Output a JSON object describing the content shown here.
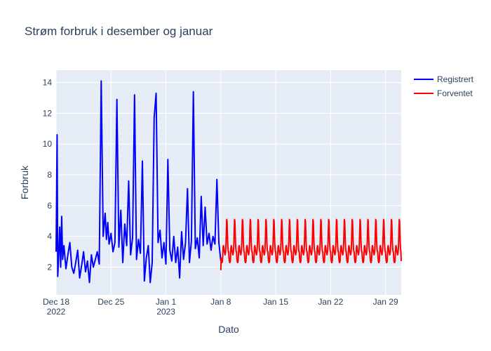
{
  "chart_data": {
    "type": "line",
    "title": "Strøm forbruk i desember og januar",
    "xlabel": "Dato",
    "ylabel": "Forbruk",
    "xlim": [
      "2022-12-18",
      "2023-01-31"
    ],
    "ylim": [
      0.2,
      14.8
    ],
    "x_ticks": [
      {
        "date": "2022-12-18",
        "label": "Dec 18",
        "sublabel": "2022"
      },
      {
        "date": "2022-12-25",
        "label": "Dec 25",
        "sublabel": ""
      },
      {
        "date": "2023-01-01",
        "label": "Jan 1",
        "sublabel": "2023"
      },
      {
        "date": "2023-01-08",
        "label": "Jan 8",
        "sublabel": ""
      },
      {
        "date": "2023-01-15",
        "label": "Jan 15",
        "sublabel": ""
      },
      {
        "date": "2023-01-22",
        "label": "Jan 22",
        "sublabel": ""
      },
      {
        "date": "2023-01-29",
        "label": "Jan 29",
        "sublabel": ""
      }
    ],
    "y_ticks": [
      2,
      4,
      6,
      8,
      10,
      12,
      14
    ],
    "grid": true,
    "legend_position": "top-right",
    "series": [
      {
        "name": "Registrert",
        "color": "#0000ff",
        "x": [
          "2022-12-18 00:00",
          "2022-12-18 03:00",
          "2022-12-18 05:00",
          "2022-12-18 08:00",
          "2022-12-18 11:00",
          "2022-12-18 14:00",
          "2022-12-18 17:00",
          "2022-12-18 20:00",
          "2022-12-19 00:00",
          "2022-12-19 06:00",
          "2022-12-19 12:00",
          "2022-12-19 18:00",
          "2022-12-20 00:00",
          "2022-12-20 06:00",
          "2022-12-20 12:00",
          "2022-12-20 18:00",
          "2022-12-21 00:00",
          "2022-12-21 06:00",
          "2022-12-21 12:00",
          "2022-12-21 18:00",
          "2022-12-22 00:00",
          "2022-12-22 06:00",
          "2022-12-22 12:00",
          "2022-12-22 18:00",
          "2022-12-23 00:00",
          "2022-12-23 06:00",
          "2022-12-23 12:00",
          "2022-12-23 18:00",
          "2022-12-24 00:00",
          "2022-12-24 06:00",
          "2022-12-24 10:00",
          "2022-12-24 14:00",
          "2022-12-24 18:00",
          "2022-12-25 00:00",
          "2022-12-25 06:00",
          "2022-12-25 12:00",
          "2022-12-25 18:00",
          "2022-12-26 00:00",
          "2022-12-26 06:00",
          "2022-12-26 12:00",
          "2022-12-26 18:00",
          "2022-12-27 00:00",
          "2022-12-27 06:00",
          "2022-12-27 12:00",
          "2022-12-27 18:00",
          "2022-12-28 00:00",
          "2022-12-28 06:00",
          "2022-12-28 12:00",
          "2022-12-28 18:00",
          "2022-12-29 00:00",
          "2022-12-29 06:00",
          "2022-12-29 12:00",
          "2022-12-29 18:00",
          "2022-12-30 00:00",
          "2022-12-30 06:00",
          "2022-12-30 12:00",
          "2022-12-30 18:00",
          "2022-12-31 00:00",
          "2022-12-31 06:00",
          "2022-12-31 12:00",
          "2022-12-31 18:00",
          "2023-01-01 00:00",
          "2023-01-01 06:00",
          "2023-01-01 12:00",
          "2023-01-01 18:00",
          "2023-01-02 00:00",
          "2023-01-02 06:00",
          "2023-01-02 12:00",
          "2023-01-02 18:00",
          "2023-01-03 00:00",
          "2023-01-03 06:00",
          "2023-01-03 12:00",
          "2023-01-03 18:00",
          "2023-01-04 00:00",
          "2023-01-04 06:00",
          "2023-01-04 12:00",
          "2023-01-04 18:00",
          "2023-01-05 00:00",
          "2023-01-05 06:00",
          "2023-01-05 12:00",
          "2023-01-05 18:00",
          "2023-01-06 00:00",
          "2023-01-06 06:00",
          "2023-01-06 12:00",
          "2023-01-06 18:00",
          "2023-01-07 00:00",
          "2023-01-07 06:00",
          "2023-01-07 12:00",
          "2023-01-07 18:00",
          "2023-01-08 00:00"
        ],
        "y": [
          3.0,
          10.6,
          1.4,
          2.8,
          4.6,
          2.0,
          5.3,
          2.5,
          3.4,
          1.9,
          2.8,
          3.6,
          2.0,
          1.6,
          2.3,
          3.1,
          1.3,
          2.1,
          3.0,
          1.7,
          2.4,
          1.0,
          2.8,
          2.0,
          2.5,
          3.0,
          2.2,
          14.1,
          4.0,
          5.5,
          3.8,
          4.9,
          3.5,
          4.2,
          3.0,
          3.6,
          12.9,
          3.3,
          5.7,
          2.3,
          4.8,
          3.4,
          7.6,
          2.8,
          3.9,
          13.2,
          2.5,
          3.8,
          2.9,
          8.9,
          1.1,
          2.6,
          3.4,
          1.0,
          2.3,
          11.7,
          13.3,
          3.6,
          4.4,
          2.6,
          3.6,
          2.2,
          9.0,
          3.1,
          2.4,
          4.0,
          2.3,
          3.3,
          1.3,
          4.3,
          2.5,
          3.6,
          7.1,
          2.3,
          3.7,
          13.4,
          3.2,
          3.9,
          2.6,
          6.6,
          3.4,
          5.9,
          3.5,
          4.2,
          3.1,
          4.0,
          3.5,
          7.7,
          3.6,
          2.4
        ]
      },
      {
        "name": "Forventet",
        "color": "#ff0000",
        "x": [
          "2023-01-08 00:00",
          "2023-01-31 00:00"
        ],
        "y": [
          1.8,
          2.4
        ],
        "daily_pattern": [
          3.0,
          2.6,
          2.4,
          2.3,
          2.3,
          2.4,
          2.8,
          3.3,
          3.4,
          3.3,
          3.1,
          3.0,
          2.9,
          2.8,
          2.9,
          3.1,
          3.6,
          4.4,
          5.1,
          5.0,
          4.3,
          3.6,
          3.2,
          3.0
        ]
      }
    ]
  }
}
